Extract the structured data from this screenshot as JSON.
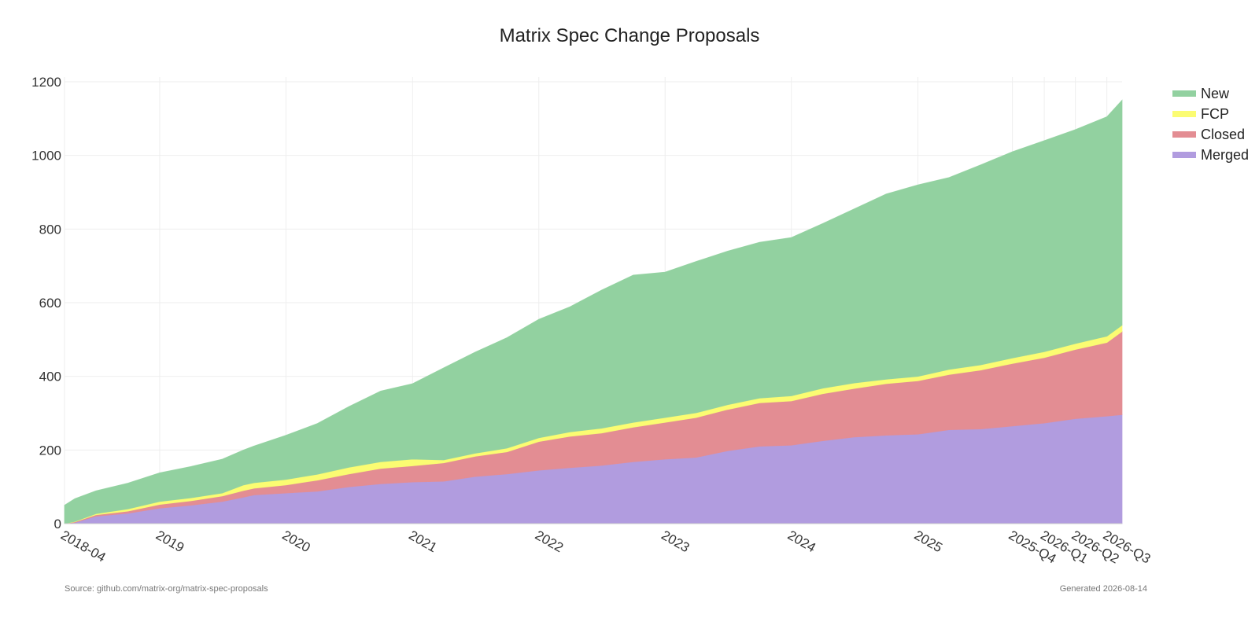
{
  "chart_data": {
    "type": "area",
    "stacked": true,
    "title": "Matrix Spec Change Proposals",
    "xlabel": "",
    "ylabel": "",
    "xlim": [
      "2018-04-01",
      "2026-08-14"
    ],
    "ylim": [
      0,
      1200
    ],
    "yticks": [
      0,
      200,
      400,
      600,
      800,
      1000,
      1200
    ],
    "xticks": [
      {
        "label": "2018-04",
        "date": "2018-04-01"
      },
      {
        "label": "2019",
        "date": "2019-01-01"
      },
      {
        "label": "2020",
        "date": "2020-01-01"
      },
      {
        "label": "2021",
        "date": "2021-01-01"
      },
      {
        "label": "2022",
        "date": "2022-01-01"
      },
      {
        "label": "2023",
        "date": "2023-01-01"
      },
      {
        "label": "2024",
        "date": "2024-01-01"
      },
      {
        "label": "2025",
        "date": "2025-01-01"
      },
      {
        "label": "2025-Q4",
        "date": "2025-10-01"
      },
      {
        "label": "2026-Q1",
        "date": "2026-01-01"
      },
      {
        "label": "2026-Q2",
        "date": "2026-04-01"
      },
      {
        "label": "2026-Q3",
        "date": "2026-07-01"
      }
    ],
    "grid": true,
    "legend_position": "top-right",
    "x": [
      "2018-04-01",
      "2018-05-01",
      "2018-07-01",
      "2018-10-01",
      "2019-01-01",
      "2019-04-01",
      "2019-07-01",
      "2019-09-01",
      "2019-10-01",
      "2020-01-01",
      "2020-04-01",
      "2020-07-01",
      "2020-10-01",
      "2021-01-01",
      "2021-04-01",
      "2021-07-01",
      "2021-10-01",
      "2022-01-01",
      "2022-04-01",
      "2022-07-01",
      "2022-10-01",
      "2023-01-01",
      "2023-04-01",
      "2023-07-01",
      "2023-10-01",
      "2024-01-01",
      "2024-04-01",
      "2024-07-01",
      "2024-10-01",
      "2025-01-01",
      "2025-04-01",
      "2025-07-01",
      "2025-10-01",
      "2026-01-01",
      "2026-04-01",
      "2026-07-01",
      "2026-08-14"
    ],
    "series": [
      {
        "name": "Merged",
        "color": "#b19cdf",
        "values": [
          0,
          3,
          20,
          28,
          42,
          50,
          60,
          72,
          78,
          83,
          88,
          100,
          108,
          113,
          115,
          128,
          135,
          145,
          152,
          158,
          168,
          175,
          180,
          198,
          210,
          213,
          225,
          235,
          240,
          243,
          255,
          257,
          265,
          273,
          285,
          292,
          296
        ]
      },
      {
        "name": "Closed",
        "color": "#e38d93",
        "values": [
          0,
          2,
          4,
          6,
          10,
          12,
          15,
          18,
          18,
          22,
          30,
          35,
          42,
          44,
          50,
          55,
          60,
          78,
          85,
          88,
          94,
          100,
          108,
          112,
          118,
          120,
          128,
          132,
          140,
          145,
          150,
          160,
          170,
          178,
          188,
          200,
          226
        ]
      },
      {
        "name": "FCP",
        "color": "#fbfc72",
        "values": [
          0,
          1,
          3,
          6,
          8,
          8,
          8,
          15,
          15,
          15,
          16,
          18,
          18,
          18,
          8,
          8,
          10,
          10,
          12,
          13,
          13,
          13,
          13,
          13,
          13,
          14,
          15,
          15,
          12,
          12,
          14,
          14,
          15,
          16,
          16,
          17,
          17
        ]
      },
      {
        "name": "New",
        "color": "#92d1a0",
        "values": [
          50,
          62,
          62,
          70,
          78,
          85,
          92,
          95,
          100,
          120,
          138,
          165,
          192,
          205,
          250,
          275,
          300,
          322,
          340,
          375,
          400,
          395,
          411,
          417,
          423,
          430,
          447,
          473,
          503,
          520,
          521,
          543,
          560,
          573,
          581,
          596,
          611
        ]
      }
    ]
  },
  "legend": {
    "items": [
      {
        "label": "New",
        "color": "#92d1a0"
      },
      {
        "label": "FCP",
        "color": "#fbfc72"
      },
      {
        "label": "Closed",
        "color": "#e38d93"
      },
      {
        "label": "Merged",
        "color": "#b19cdf"
      }
    ]
  },
  "footer": {
    "source": "Source: github.com/matrix-org/matrix-spec-proposals",
    "generated": "Generated 2026-08-14"
  }
}
